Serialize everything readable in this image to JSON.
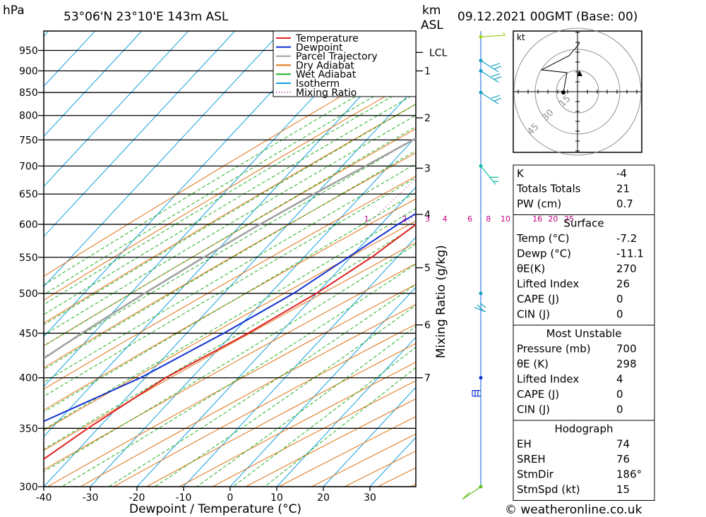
{
  "header": {
    "units_left": "hPa",
    "location": "53°06'N  23°10'E  143m  ASL",
    "units_km": "km",
    "units_asl": "ASL",
    "datetime": "09.12.2021  00GMT  (Base: 00)"
  },
  "chart_data": {
    "type": "line",
    "title": "53°06'N  23°10'E  143m  ASL",
    "xlabel": "Dewpoint / Temperature (°C)",
    "ylabel": "hPa",
    "y_scale": "log-pressure",
    "skew": true,
    "xlim": [
      -40,
      40
    ],
    "ylim": [
      1000,
      300
    ],
    "x_ticks": [
      -40,
      -30,
      -20,
      -10,
      0,
      10,
      20,
      30
    ],
    "pressure_levels": [
      300,
      350,
      400,
      450,
      500,
      550,
      600,
      650,
      700,
      750,
      800,
      850,
      900,
      950
    ],
    "km_ticks": [
      {
        "label": "7",
        "p": 400
      },
      {
        "label": "6",
        "p": 460
      },
      {
        "label": "5",
        "p": 535
      },
      {
        "label": "4",
        "p": 616
      },
      {
        "label": "3",
        "p": 696
      },
      {
        "label": "2",
        "p": 795
      },
      {
        "label": "1",
        "p": 900
      },
      {
        "label": "LCL",
        "p": 945
      }
    ],
    "mixing_ratio_label": "Mixing Ratio (g/kg)",
    "mixing_ratio_values": [
      "1",
      "2",
      "3",
      "4",
      "6",
      "8",
      "10",
      "16",
      "20",
      "25"
    ],
    "legend": {
      "placement": "top-right",
      "entries": [
        {
          "name": "Temperature",
          "color": "#e02020"
        },
        {
          "name": "Dewpoint",
          "color": "#1030d0"
        },
        {
          "name": "Parcel Trajectory",
          "color": "#a0a0a0"
        },
        {
          "name": "Dry Adiabat",
          "color": "#e07010"
        },
        {
          "name": "Wet Adiabat",
          "color": "#20b020"
        },
        {
          "name": "Isotherm",
          "color": "#10a0e0"
        },
        {
          "name": "Mixing Ratio",
          "color": "#c00080"
        }
      ]
    },
    "series": [
      {
        "name": "Temperature",
        "color": "#e02020",
        "points": [
          {
            "p": 300,
            "t": -48.5
          },
          {
            "p": 350,
            "t": -42.2
          },
          {
            "p": 400,
            "t": -35.6
          },
          {
            "p": 450,
            "t": -26.8
          },
          {
            "p": 500,
            "t": -20.1
          },
          {
            "p": 550,
            "t": -15.5
          },
          {
            "p": 600,
            "t": -12.5
          },
          {
            "p": 650,
            "t": -10.2
          },
          {
            "p": 700,
            "t": -8.6
          },
          {
            "p": 750,
            "t": -6.0
          },
          {
            "p": 800,
            "t": -3.0
          },
          {
            "p": 850,
            "t": -1.6
          },
          {
            "p": 900,
            "t": -4.5
          },
          {
            "p": 925,
            "t": -8.0
          },
          {
            "p": 950,
            "t": -13.5
          },
          {
            "p": 970,
            "t": -15.5
          },
          {
            "p": 985,
            "t": -14.5
          }
        ]
      },
      {
        "name": "Dewpoint",
        "color": "#1030d0",
        "points": [
          {
            "p": 300,
            "t": -60.0
          },
          {
            "p": 350,
            "t": -55.0
          },
          {
            "p": 400,
            "t": -41.0
          },
          {
            "p": 450,
            "t": -32.0
          },
          {
            "p": 500,
            "t": -25.0
          },
          {
            "p": 550,
            "t": -20.5
          },
          {
            "p": 600,
            "t": -16.4
          },
          {
            "p": 650,
            "t": -11.5
          },
          {
            "p": 700,
            "t": -8.6
          },
          {
            "p": 750,
            "t": -10.0
          },
          {
            "p": 790,
            "t": -31.0
          },
          {
            "p": 800,
            "t": -32.5
          },
          {
            "p": 850,
            "t": -33.5
          },
          {
            "p": 900,
            "t": -27.5
          },
          {
            "p": 925,
            "t": -26.5
          },
          {
            "p": 950,
            "t": -22.5
          },
          {
            "p": 985,
            "t": -18.0
          }
        ]
      },
      {
        "name": "Parcel Trajectory",
        "color": "#a0a0a0",
        "points": [
          {
            "p": 300,
            "t": -78.0
          },
          {
            "p": 350,
            "t": -73.0
          },
          {
            "p": 400,
            "t": -68.0
          },
          {
            "p": 450,
            "t": -62.5
          },
          {
            "p": 500,
            "t": -57.0
          },
          {
            "p": 550,
            "t": -51.5
          },
          {
            "p": 600,
            "t": -46.0
          },
          {
            "p": 650,
            "t": -40.5
          },
          {
            "p": 700,
            "t": -35.0
          },
          {
            "p": 750,
            "t": -30.0
          },
          {
            "p": 800,
            "t": -25.5
          },
          {
            "p": 850,
            "t": -21.0
          },
          {
            "p": 900,
            "t": -17.0
          },
          {
            "p": 950,
            "t": -13.6
          },
          {
            "p": 985,
            "t": -11.5
          }
        ]
      }
    ],
    "wind_barbs": [
      {
        "p": 300,
        "color": "#60c020"
      },
      {
        "p": 400,
        "color": "#1030d0"
      },
      {
        "p": 500,
        "color": "#10a0c0"
      },
      {
        "p": 700,
        "color": "#10c0a0"
      },
      {
        "p": 850,
        "color": "#10a0c0"
      },
      {
        "p": 900,
        "color": "#10a0c0"
      },
      {
        "p": 925,
        "color": "#10a0c0"
      },
      {
        "p": 985,
        "color": "#a0d020"
      }
    ]
  },
  "hodograph": {
    "units": "kt",
    "ring_labels": [
      "15",
      "30",
      "45"
    ]
  },
  "indices": {
    "rows": [
      {
        "label": "K",
        "value": "-4"
      },
      {
        "label": "Totals Totals",
        "value": "21"
      },
      {
        "label": "PW (cm)",
        "value": "0.7"
      }
    ]
  },
  "surface": {
    "title": "Surface",
    "rows": [
      {
        "label": "Temp (°C)",
        "value": "-7.2"
      },
      {
        "label": "Dewp (°C)",
        "value": "-11.1"
      },
      {
        "label": "θE(K)",
        "value": "270"
      },
      {
        "label": "Lifted Index",
        "value": "26"
      },
      {
        "label": "CAPE (J)",
        "value": "0"
      },
      {
        "label": "CIN (J)",
        "value": "0"
      }
    ]
  },
  "most_unstable": {
    "title": "Most Unstable",
    "rows": [
      {
        "label": "Pressure (mb)",
        "value": "700"
      },
      {
        "label": "θE (K)",
        "value": "298"
      },
      {
        "label": "Lifted Index",
        "value": "4"
      },
      {
        "label": "CAPE (J)",
        "value": "0"
      },
      {
        "label": "CIN (J)",
        "value": "0"
      }
    ]
  },
  "hodograph_stats": {
    "title": "Hodograph",
    "rows": [
      {
        "label": "EH",
        "value": "74"
      },
      {
        "label": "SREH",
        "value": "76"
      },
      {
        "label": "StmDir",
        "value": "186°"
      },
      {
        "label": "StmSpd (kt)",
        "value": "15"
      }
    ]
  },
  "footer": {
    "copyright": "© weatheronline.co.uk"
  }
}
